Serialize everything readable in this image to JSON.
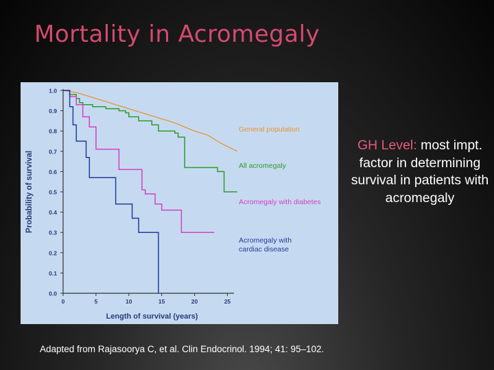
{
  "slide": {
    "title": "Mortality in Acromegaly",
    "side_note": {
      "highlight": "GH Level:",
      "text": " most impt. factor in determining survival in patients with acromegaly"
    },
    "citation": "Adapted from Rajasoorya C, et al. Clin Endocrinol. 1994; 41: 95–102."
  },
  "colors": {
    "title": "#d44a6f",
    "panel_bg": "#c5daf0",
    "general_population": "#e8952f",
    "all_acromegaly": "#2f9a30",
    "diabetes": "#d63fc4",
    "cardiac": "#263a9c",
    "axis_text": "#2a3a7a"
  },
  "chart_data": {
    "type": "line",
    "title": "",
    "xlabel": "Length of survival (years)",
    "ylabel": "Probability of survival",
    "xlim": [
      0,
      26
    ],
    "ylim": [
      0,
      1.0
    ],
    "x_ticks": [
      0,
      5,
      10,
      15,
      20,
      25
    ],
    "x_tick_labels": [
      "0",
      "5",
      "10",
      "15",
      "20",
      "25"
    ],
    "y_ticks": [
      0,
      0.1,
      0.2,
      0.3,
      0.4,
      0.5,
      0.6,
      0.7,
      0.8,
      0.9,
      1.0
    ],
    "y_tick_labels": [
      "0.0",
      "0.1",
      "0.2",
      "0.3",
      "0.4",
      "0.5",
      "0.6",
      "0.7",
      "0.8",
      "0.9",
      "1.0"
    ],
    "grid": false,
    "series": [
      {
        "name": "General population",
        "label_lines": [
          "General population"
        ],
        "step": false,
        "color": "#e8952f",
        "points": [
          [
            0,
            1.0
          ],
          [
            2,
            0.99
          ],
          [
            5,
            0.96
          ],
          [
            8,
            0.93
          ],
          [
            11,
            0.9
          ],
          [
            14,
            0.87
          ],
          [
            17,
            0.84
          ],
          [
            20,
            0.8
          ],
          [
            22,
            0.78
          ],
          [
            24,
            0.74
          ],
          [
            26.5,
            0.7
          ]
        ]
      },
      {
        "name": "All acromegaly",
        "label_lines": [
          "All acromegaly"
        ],
        "step": true,
        "color": "#2f9a30",
        "points": [
          [
            0,
            1.0
          ],
          [
            1,
            0.98
          ],
          [
            2,
            0.96
          ],
          [
            2.5,
            0.94
          ],
          [
            3,
            0.93
          ],
          [
            4.5,
            0.92
          ],
          [
            6.5,
            0.91
          ],
          [
            8.5,
            0.9
          ],
          [
            9.5,
            0.89
          ],
          [
            10,
            0.87
          ],
          [
            11.5,
            0.85
          ],
          [
            13.5,
            0.83
          ],
          [
            14.5,
            0.8
          ],
          [
            17,
            0.79
          ],
          [
            17.5,
            0.77
          ],
          [
            18.5,
            0.62
          ],
          [
            23.5,
            0.6
          ],
          [
            24.5,
            0.5
          ],
          [
            26.5,
            0.5
          ]
        ]
      },
      {
        "name": "Acromegaly with diabetes",
        "label_lines": [
          "Acromegaly with diabetes"
        ],
        "step": true,
        "color": "#d63fc4",
        "points": [
          [
            0,
            1.0
          ],
          [
            1,
            0.97
          ],
          [
            2,
            0.93
          ],
          [
            3,
            0.87
          ],
          [
            4,
            0.82
          ],
          [
            5,
            0.71
          ],
          [
            8.5,
            0.61
          ],
          [
            12,
            0.51
          ],
          [
            12.5,
            0.49
          ],
          [
            14,
            0.44
          ],
          [
            15,
            0.41
          ],
          [
            18,
            0.3
          ],
          [
            23,
            0.3
          ]
        ]
      },
      {
        "name": "Acromegaly with cardiac disease",
        "label_lines": [
          "Acromegaly with",
          "cardiac disease"
        ],
        "step": true,
        "color": "#263a9c",
        "points": [
          [
            0,
            1.0
          ],
          [
            1,
            0.92
          ],
          [
            1.5,
            0.83
          ],
          [
            2,
            0.75
          ],
          [
            3.5,
            0.67
          ],
          [
            4,
            0.57
          ],
          [
            8,
            0.44
          ],
          [
            10.5,
            0.37
          ],
          [
            11.5,
            0.3
          ],
          [
            14.5,
            0.0
          ]
        ]
      }
    ]
  }
}
